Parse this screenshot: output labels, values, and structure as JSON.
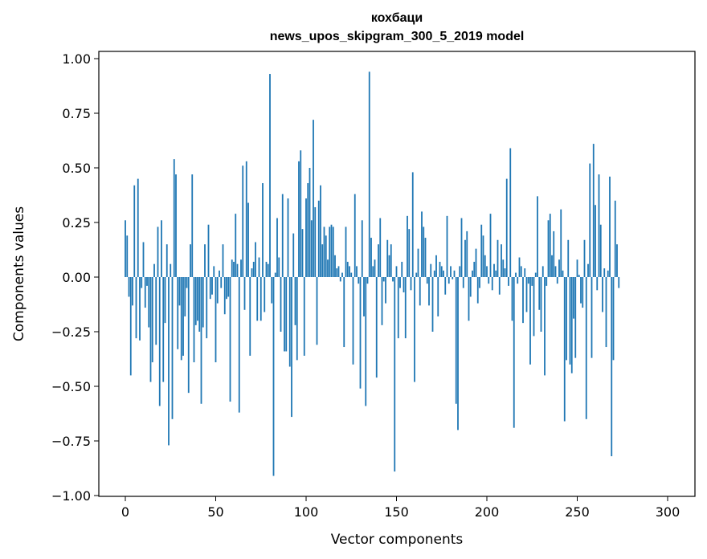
{
  "chart_data": {
    "type": "bar",
    "title_line1": "кохбаци",
    "title_line2": "news_upos_skipgram_300_5_2019 model",
    "xlabel": "Vector components",
    "ylabel": "Components values",
    "xlim": [
      -15,
      314
    ],
    "ylim": [
      -1.0,
      1.0
    ],
    "xticks": [
      0,
      50,
      100,
      150,
      200,
      250,
      300
    ],
    "xtick_labels": [
      "0",
      "50",
      "100",
      "150",
      "200",
      "250",
      "300"
    ],
    "yticks": [
      1.0,
      0.75,
      0.5,
      0.25,
      0.0,
      -0.25,
      -0.5,
      -0.75,
      -1.0
    ],
    "ytick_labels": [
      "1.00",
      "0.75",
      "0.50",
      "0.25",
      "0.00",
      "−0.25",
      "−0.50",
      "−0.75",
      "−1.00"
    ],
    "bar_color": "#1f77b4",
    "values": [
      0.26,
      0.19,
      -0.09,
      -0.45,
      -0.13,
      0.42,
      -0.28,
      0.45,
      -0.29,
      -0.05,
      0.16,
      -0.14,
      -0.04,
      -0.23,
      -0.48,
      -0.39,
      0.06,
      -0.31,
      0.23,
      -0.59,
      0.26,
      -0.48,
      -0.21,
      0.15,
      -0.77,
      0.06,
      -0.65,
      0.54,
      0.47,
      -0.33,
      -0.13,
      -0.38,
      -0.36,
      -0.18,
      -0.05,
      -0.53,
      0.15,
      0.47,
      -0.39,
      -0.22,
      -0.2,
      -0.25,
      -0.58,
      -0.23,
      0.15,
      -0.28,
      0.24,
      -0.1,
      -0.08,
      0.05,
      -0.39,
      -0.12,
      0.03,
      -0.05,
      0.15,
      -0.17,
      -0.1,
      -0.09,
      -0.57,
      0.08,
      0.07,
      0.29,
      0.06,
      -0.62,
      0.08,
      0.51,
      -0.15,
      0.53,
      0.34,
      -0.36,
      0.04,
      0.07,
      0.16,
      -0.2,
      0.09,
      -0.2,
      0.43,
      -0.16,
      0.07,
      0.06,
      0.93,
      -0.12,
      -0.91,
      0.02,
      0.27,
      0.09,
      -0.25,
      0.38,
      -0.34,
      -0.34,
      0.36,
      -0.41,
      -0.64,
      0.2,
      -0.22,
      -0.38,
      0.53,
      0.58,
      0.22,
      -0.36,
      0.36,
      0.43,
      0.5,
      0.26,
      0.72,
      0.32,
      -0.31,
      0.35,
      0.42,
      0.15,
      0.23,
      0.19,
      0.08,
      0.23,
      0.24,
      0.23,
      0.1,
      0.04,
      0.05,
      -0.02,
      0.02,
      -0.32,
      0.23,
      0.07,
      0.05,
      0.02,
      -0.4,
      0.38,
      0.05,
      -0.03,
      -0.51,
      0.26,
      -0.18,
      -0.59,
      -0.03,
      0.94,
      0.18,
      0.05,
      0.08,
      -0.46,
      0.15,
      0.27,
      -0.22,
      -0.02,
      -0.12,
      0.17,
      0.1,
      0.15,
      -0.02,
      -0.89,
      0.05,
      -0.28,
      -0.05,
      0.07,
      -0.07,
      -0.28,
      0.28,
      0.22,
      -0.06,
      0.48,
      -0.48,
      0.02,
      0.13,
      -0.13,
      0.3,
      0.23,
      0.18,
      -0.03,
      -0.13,
      0.06,
      -0.25,
      0.03,
      0.1,
      -0.18,
      0.07,
      0.05,
      0.03,
      -0.08,
      0.28,
      -0.03,
      0.05,
      -0.01,
      0.03,
      -0.58,
      -0.7,
      0.05,
      0.27,
      -0.05,
      0.17,
      0.21,
      -0.2,
      -0.09,
      0.03,
      0.07,
      0.13,
      -0.12,
      -0.05,
      0.24,
      0.19,
      0.1,
      0.05,
      -0.03,
      0.29,
      -0.06,
      0.06,
      0.03,
      0.17,
      -0.08,
      0.15,
      0.08,
      0.04,
      0.45,
      -0.04,
      0.59,
      -0.2,
      -0.69,
      0.02,
      -0.03,
      0.09,
      0.05,
      -0.21,
      0.04,
      -0.16,
      -0.03,
      -0.4,
      -0.04,
      -0.27,
      0.02,
      0.37,
      -0.15,
      -0.25,
      0.05,
      -0.45,
      -0.04,
      0.26,
      0.29,
      0.1,
      0.21,
      0.05,
      -0.03,
      0.08,
      0.31,
      0.03,
      -0.66,
      -0.38,
      0.17,
      -0.4,
      -0.44,
      -0.19,
      -0.37,
      0.08,
      0.01,
      -0.12,
      -0.14,
      0.17,
      -0.65,
      0.06,
      0.52,
      -0.37,
      0.61,
      0.33,
      -0.06,
      0.47,
      0.24,
      -0.16,
      0.04,
      -0.32,
      0.03,
      0.46,
      -0.82,
      -0.38,
      0.35,
      0.15,
      -0.05
    ]
  }
}
